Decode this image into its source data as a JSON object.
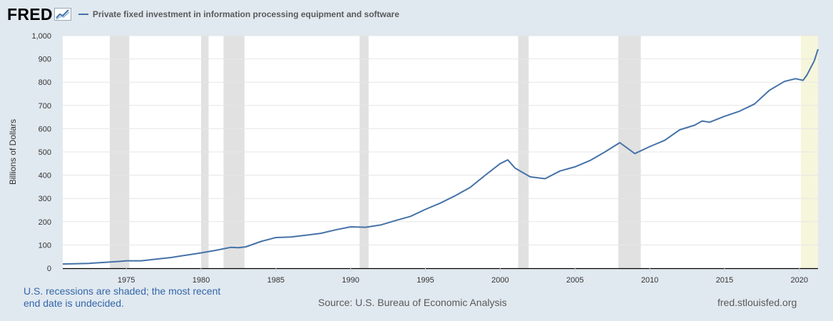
{
  "header": {
    "logo": "FRED",
    "legend_label": "Private fixed investment in information processing equipment and software"
  },
  "colors": {
    "background": "#e1e9f0",
    "plot_bg": "#ffffff",
    "series": "#4572a7",
    "recession": "#e1e1e1",
    "undecided": "#f6f6dc",
    "axis_text": "#333333"
  },
  "footer": {
    "recession_note": "U.S. recessions are shaded; the most recent end date is undecided.",
    "source": "Source: U.S. Bureau of Economic Analysis",
    "site": "fred.stlouisfed.org"
  },
  "chart_data": {
    "type": "line",
    "title": "",
    "xlabel": "",
    "ylabel": "Billions of Dollars",
    "xlim": [
      1970.75,
      2021.25
    ],
    "ylim": [
      0,
      1000
    ],
    "grid": true,
    "y_ticks": [
      0,
      100,
      200,
      300,
      400,
      500,
      600,
      700,
      800,
      900,
      1000
    ],
    "y_tick_labels": [
      "0",
      "100",
      "200",
      "300",
      "400",
      "500",
      "600",
      "700",
      "800",
      "900",
      "1,000"
    ],
    "x_ticks": [
      1975,
      1980,
      1985,
      1990,
      1995,
      2000,
      2005,
      2010,
      2015,
      2020
    ],
    "x_tick_labels": [
      "1975",
      "1980",
      "1985",
      "1990",
      "1995",
      "2000",
      "2005",
      "2010",
      "2015",
      "2020"
    ],
    "recessions": [
      {
        "start": 1973.9,
        "end": 1975.2
      },
      {
        "start": 1980.0,
        "end": 1980.5
      },
      {
        "start": 1981.5,
        "end": 1982.9
      },
      {
        "start": 1990.6,
        "end": 1991.2
      },
      {
        "start": 2001.2,
        "end": 2001.9
      },
      {
        "start": 2007.9,
        "end": 2009.4
      },
      {
        "start": 2020.1,
        "end": 2021.25,
        "undecided": true
      }
    ],
    "series": [
      {
        "name": "Private fixed investment in information processing equipment and software",
        "x": [
          1970.75,
          1971.5,
          1972.5,
          1973.5,
          1974.5,
          1975.0,
          1976.0,
          1977.0,
          1978.0,
          1979.0,
          1980.0,
          1981.0,
          1982.0,
          1982.5,
          1983.0,
          1984.0,
          1985.0,
          1986.0,
          1987.0,
          1988.0,
          1989.0,
          1990.0,
          1991.0,
          1992.0,
          1993.0,
          1994.0,
          1995.0,
          1996.0,
          1997.0,
          1998.0,
          1999.0,
          2000.0,
          2000.5,
          2001.0,
          2002.0,
          2003.0,
          2004.0,
          2005.0,
          2006.0,
          2007.0,
          2008.0,
          2009.0,
          2010.0,
          2011.0,
          2012.0,
          2013.0,
          2013.5,
          2014.0,
          2015.0,
          2016.0,
          2017.0,
          2018.0,
          2019.0,
          2019.75,
          2020.25,
          2020.5,
          2021.0,
          2021.25
        ],
        "values": [
          18,
          19,
          21,
          25,
          29,
          32,
          32,
          39,
          46,
          56,
          66,
          77,
          90,
          88,
          92,
          115,
          132,
          134,
          142,
          150,
          165,
          178,
          176,
          186,
          205,
          223,
          253,
          280,
          312,
          348,
          400,
          450,
          466,
          430,
          393,
          385,
          418,
          436,
          463,
          500,
          540,
          493,
          523,
          550,
          595,
          615,
          633,
          628,
          653,
          675,
          706,
          765,
          803,
          815,
          808,
          830,
          892,
          942
        ]
      }
    ]
  }
}
